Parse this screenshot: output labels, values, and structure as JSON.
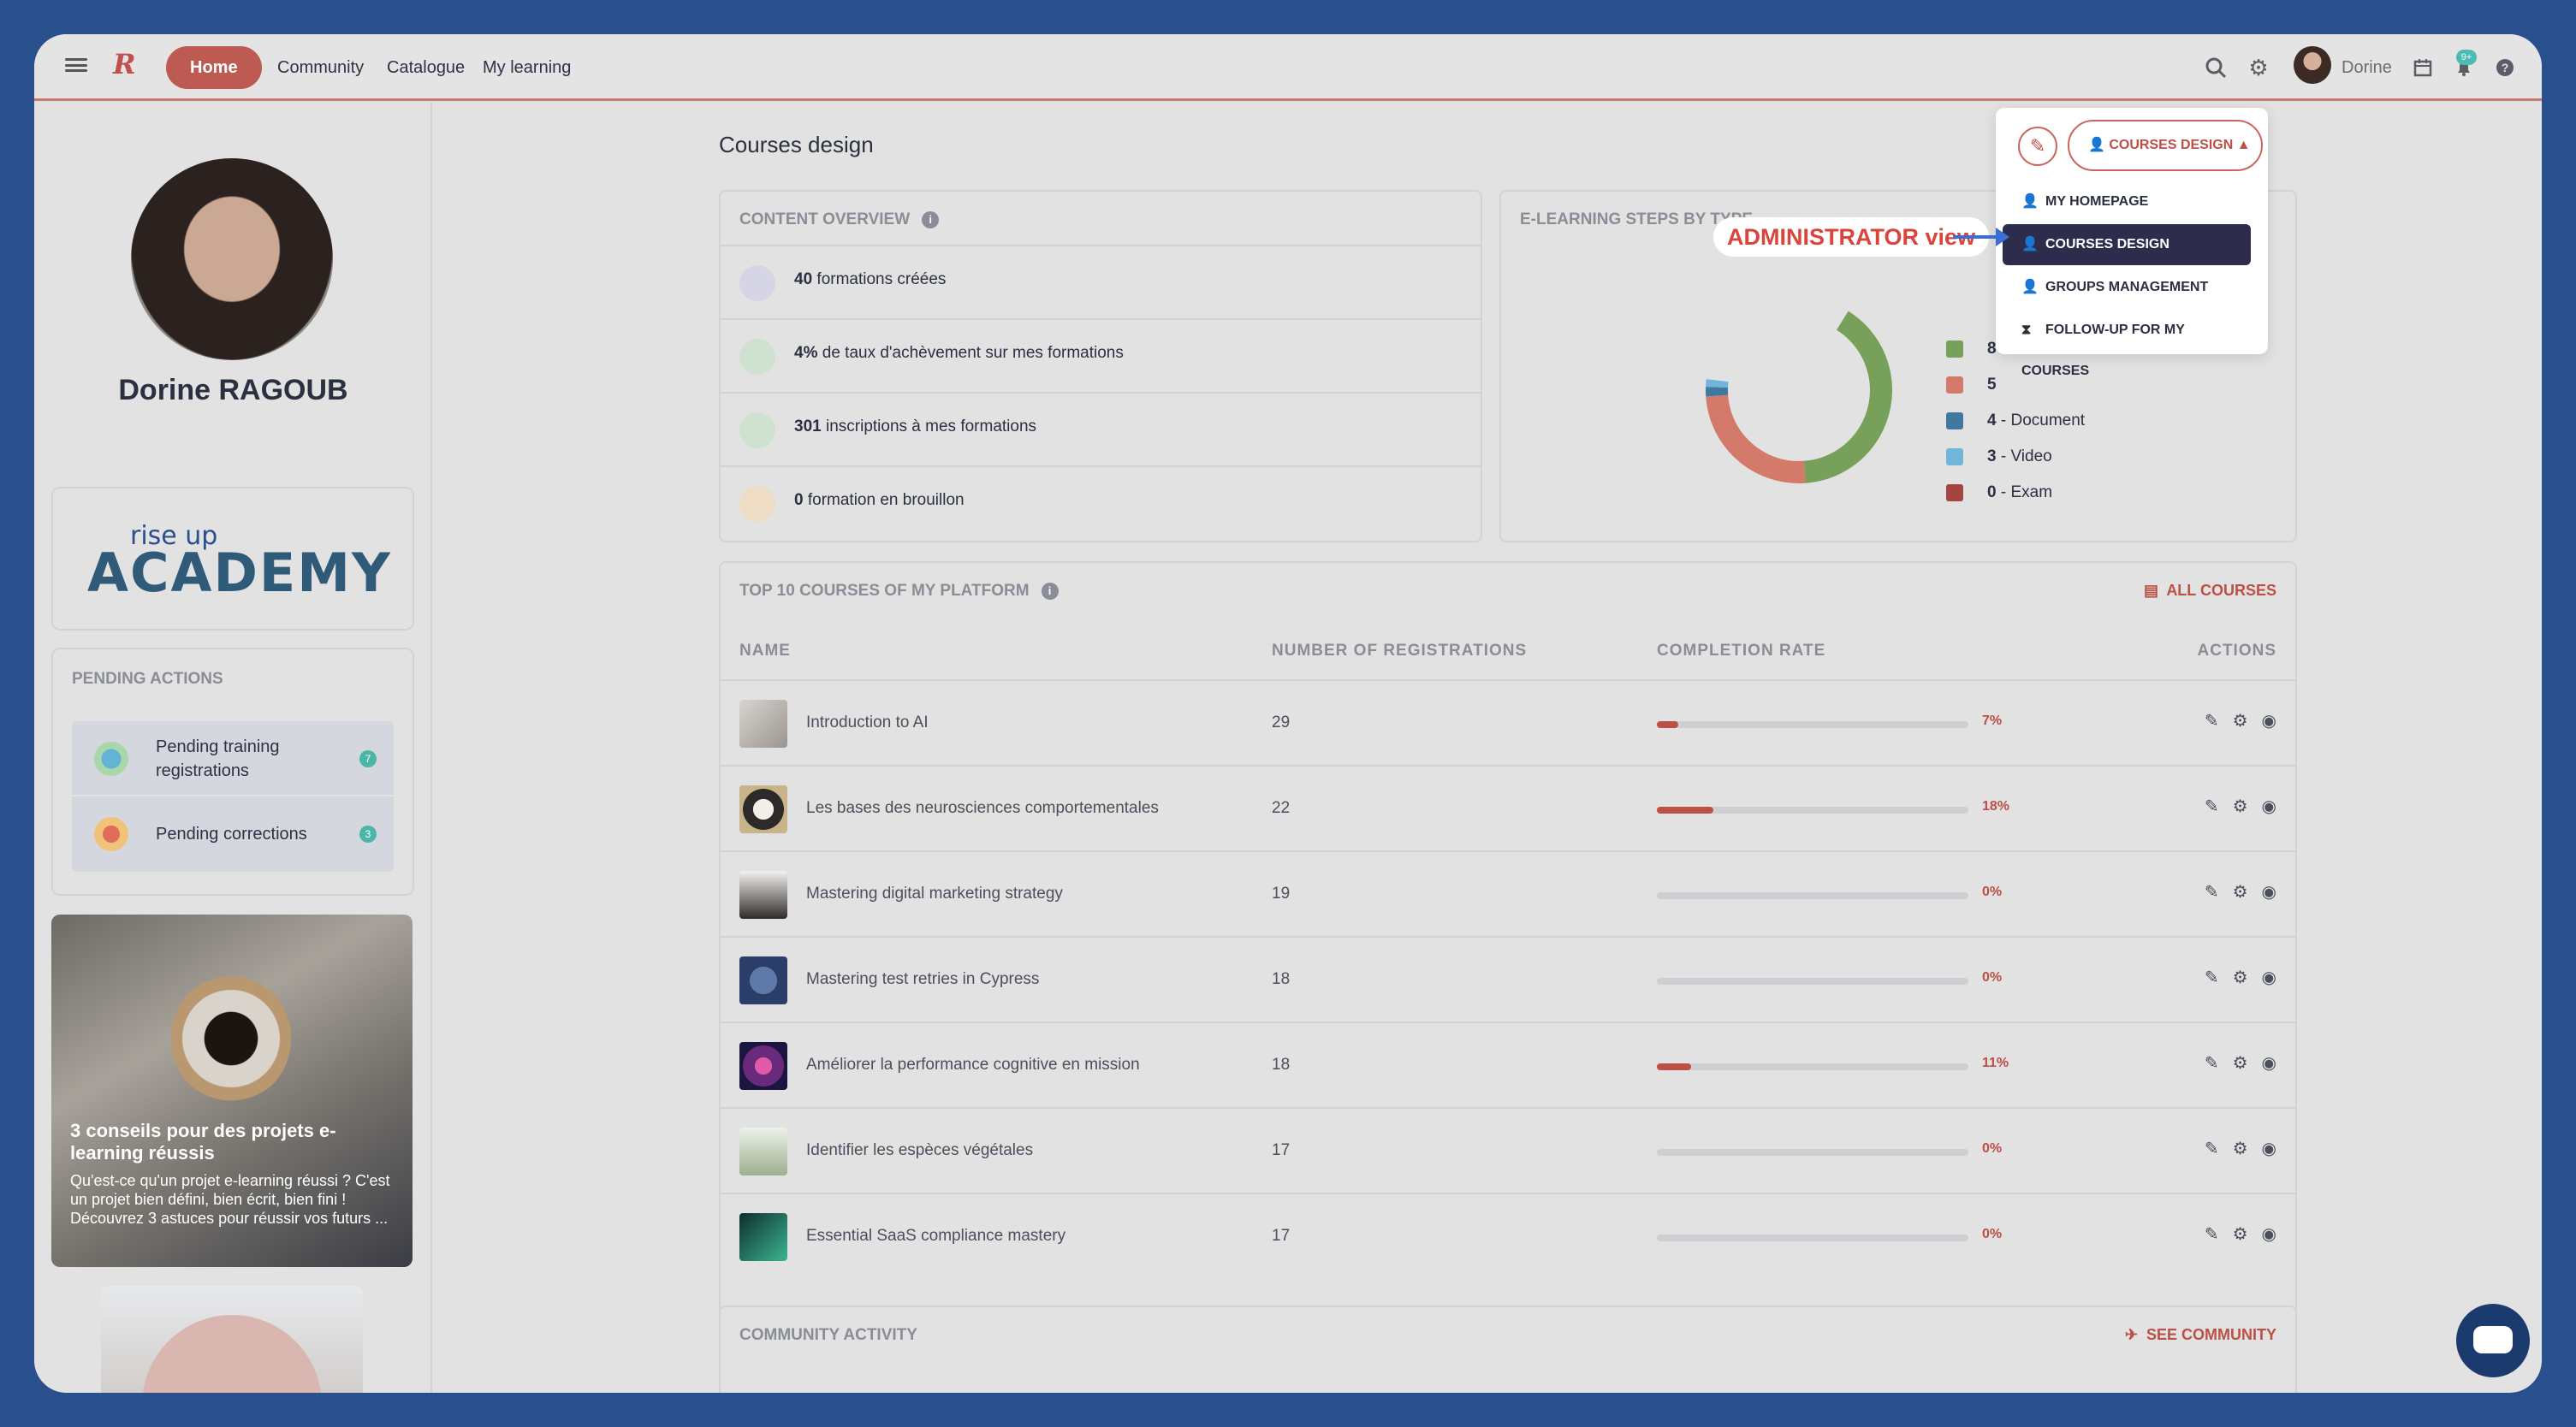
{
  "nav": {
    "logo": "R",
    "home": "Home",
    "links": [
      "Community",
      "Catalogue",
      "My learning"
    ],
    "user_name": "Dorine",
    "notif_badge": "9+"
  },
  "sidebar": {
    "profile_name": "Dorine RAGOUB",
    "academy_small": "rise up",
    "academy_big": "ACADEMY",
    "pending_title": "PENDING ACTIONS",
    "pending": [
      {
        "label": "Pending training registrations",
        "count": "7"
      },
      {
        "label": "Pending corrections",
        "count": "3"
      }
    ],
    "blog": {
      "title": "3 conseils pour des projets e-learning réussis",
      "text": "Qu'est-ce qu'un projet e-learning réussi ? C'est un projet bien défini, bien écrit, bien fini ! Découvrez 3 astuces pour réussir vos futurs ..."
    }
  },
  "main": {
    "title": "Courses design",
    "overview": {
      "title": "CONTENT OVERVIEW",
      "rows": [
        {
          "value": "40",
          "text": " formations créées"
        },
        {
          "value": "4%",
          "text": " de taux d'achèvement sur mes formations"
        },
        {
          "value": "301",
          "text": " inscriptions à mes formations"
        },
        {
          "value": "0",
          "text": " formation en brouillon"
        }
      ]
    },
    "steps": {
      "title": "E-LEARNING STEPS BY TYPE",
      "legend": [
        {
          "value": "8",
          "label": "",
          "color": "#77a05a"
        },
        {
          "value": "5",
          "label": "",
          "color": "#d47a6a"
        },
        {
          "value": "4",
          "label": "Document",
          "color": "#3f79a0"
        },
        {
          "value": "3",
          "label": "Video",
          "color": "#71b6d9"
        },
        {
          "value": "0",
          "label": "Exam",
          "color": "#a3463d"
        }
      ]
    },
    "top_courses": {
      "title": "TOP 10 COURSES OF MY PLATFORM",
      "all_link": "ALL COURSES",
      "headers": [
        "NAME",
        "NUMBER OF REGISTRATIONS",
        "COMPLETION RATE",
        "ACTIONS"
      ],
      "rows": [
        {
          "name": "Introduction to AI",
          "registrations": "29",
          "rate": 7,
          "rate_label": "7%"
        },
        {
          "name": "Les bases des neurosciences comportementales",
          "registrations": "22",
          "rate": 18,
          "rate_label": "18%"
        },
        {
          "name": "Mastering digital marketing strategy",
          "registrations": "19",
          "rate": 0,
          "rate_label": "0%"
        },
        {
          "name": "Mastering test retries in Cypress",
          "registrations": "18",
          "rate": 0,
          "rate_label": "0%"
        },
        {
          "name": "Améliorer la performance cognitive en mission",
          "registrations": "18",
          "rate": 11,
          "rate_label": "11%"
        },
        {
          "name": "Identifier les espèces végétales",
          "registrations": "17",
          "rate": 0,
          "rate_label": "0%"
        },
        {
          "name": "Essential SaaS compliance mastery",
          "registrations": "17",
          "rate": 0,
          "rate_label": "0%"
        }
      ]
    },
    "community": {
      "title": "COMMUNITY ACTIVITY",
      "link": "SEE COMMUNITY"
    }
  },
  "dropdown": {
    "selected": "COURSES DESIGN",
    "items": [
      "MY HOMEPAGE",
      "COURSES DESIGN",
      "GROUPS MANAGEMENT",
      "FOLLOW-UP FOR MY COURSES"
    ],
    "active_index": 1
  },
  "annotation": "ADMINISTRATOR view",
  "colors": {
    "accent": "#bd5b52",
    "dark": "#2e2c4d",
    "annotation": "#d9453c",
    "arrow": "#3b6fd6"
  }
}
